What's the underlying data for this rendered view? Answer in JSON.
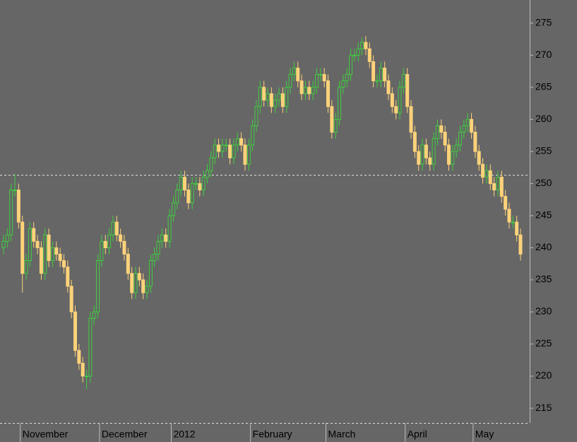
{
  "chart_data": {
    "type": "candlestick",
    "categories": [
      null,
      null,
      null,
      null,
      null,
      "November",
      null,
      null,
      null,
      null,
      null,
      null,
      null,
      null,
      null,
      null,
      null,
      null,
      null,
      null,
      null,
      null,
      null,
      null,
      null,
      null,
      "December",
      null,
      null,
      null,
      null,
      null,
      null,
      null,
      null,
      null,
      null,
      null,
      null,
      null,
      null,
      null,
      null,
      null,
      null,
      "2012",
      null,
      null,
      null,
      null,
      null,
      null,
      null,
      null,
      null,
      null,
      null,
      null,
      null,
      null,
      null,
      null,
      null,
      null,
      null,
      null,
      "February",
      null,
      null,
      null,
      null,
      null,
      null,
      null,
      null,
      null,
      null,
      null,
      null,
      null,
      null,
      null,
      null,
      null,
      null,
      null,
      "March",
      null,
      null,
      null,
      null,
      null,
      null,
      null,
      null,
      null,
      null,
      null,
      null,
      null,
      null,
      null,
      null,
      null,
      null,
      null,
      null,
      "April",
      null,
      null,
      null,
      null,
      null,
      null,
      null,
      null,
      null,
      null,
      null,
      null,
      null,
      null,
      null,
      null,
      null,
      "May",
      null,
      null,
      null,
      null,
      null,
      null,
      null,
      null,
      null,
      null,
      null,
      null
    ],
    "open": [
      240,
      241,
      242,
      249,
      249,
      244,
      236,
      238,
      243,
      241,
      240,
      236,
      242,
      238,
      240,
      239,
      238,
      237,
      234,
      230,
      224,
      222,
      220,
      220,
      229,
      230,
      238,
      241,
      240,
      242,
      244,
      242,
      241,
      239,
      236,
      233,
      236,
      235,
      233,
      234,
      238,
      239,
      241,
      242,
      241,
      245,
      247,
      249,
      251,
      249,
      247,
      250,
      250,
      249,
      251,
      252,
      254,
      256,
      255,
      256,
      256,
      254,
      256,
      257,
      256,
      253,
      256,
      259,
      262,
      265,
      263,
      264,
      262,
      263,
      264,
      262,
      265,
      267,
      268,
      266,
      264,
      265,
      264,
      265,
      267,
      267,
      266,
      262,
      258,
      260,
      265,
      266,
      267,
      270,
      270,
      271,
      272,
      271,
      269,
      266,
      266,
      268,
      266,
      264,
      262,
      261,
      265,
      267,
      262,
      258,
      255,
      253,
      256,
      254,
      253,
      257,
      259,
      258,
      256,
      253,
      255,
      256,
      258,
      259,
      260,
      258,
      255,
      253,
      251,
      252,
      250,
      249,
      251,
      248,
      246,
      244,
      244,
      242
    ],
    "high": [
      242,
      243,
      250,
      251.5,
      250,
      245,
      239,
      244,
      244,
      242,
      241,
      243,
      243,
      241,
      241,
      240,
      239,
      238,
      235,
      231,
      225,
      223,
      221,
      230,
      231,
      239,
      242,
      242,
      243,
      245,
      245,
      243,
      242,
      240,
      237,
      237,
      237,
      236,
      235,
      239,
      240,
      242,
      243,
      243,
      246,
      248,
      250,
      252,
      252,
      250,
      251,
      251,
      251,
      252,
      253,
      255,
      257,
      257,
      257,
      257,
      257,
      257,
      258,
      258,
      257,
      257,
      260,
      263,
      266,
      266,
      265,
      265,
      264,
      265,
      265,
      266,
      268,
      269,
      269,
      267,
      266,
      266,
      266,
      268,
      268,
      268,
      267,
      263,
      261,
      266,
      267,
      268,
      271,
      271,
      272,
      272.8,
      273,
      272,
      270,
      267,
      269,
      269,
      267,
      265,
      263,
      266,
      268,
      268,
      263,
      259,
      256,
      257,
      257,
      255,
      258,
      260,
      260,
      259,
      257,
      256,
      257,
      259,
      260,
      261,
      261,
      259,
      256,
      254,
      253,
      253,
      251,
      252,
      252,
      249,
      247,
      245,
      245,
      243
    ],
    "low": [
      239,
      240,
      241,
      248,
      243,
      233,
      235,
      237,
      240,
      239,
      235,
      235,
      237,
      237,
      238,
      237,
      236,
      233,
      229,
      223,
      221,
      219,
      218,
      219,
      228,
      229,
      237,
      239,
      239,
      241,
      241,
      240,
      238,
      235,
      232,
      232,
      234,
      232,
      232,
      233,
      237,
      238,
      240,
      240,
      240,
      244,
      246,
      248,
      248,
      246,
      246,
      249,
      248,
      248,
      250,
      251,
      253,
      254,
      254,
      255,
      253,
      253,
      255,
      255,
      252,
      252,
      255,
      258,
      261,
      262,
      262,
      261,
      261,
      262,
      261,
      261,
      264,
      266,
      265,
      263,
      263,
      263,
      263,
      264,
      266,
      265,
      261,
      257,
      257,
      259,
      264,
      265,
      266,
      269,
      269,
      270,
      270,
      268,
      265,
      265,
      265,
      265,
      263,
      261,
      260,
      260,
      264,
      261,
      257,
      254,
      252,
      252,
      253,
      252,
      252,
      256,
      257,
      255,
      252,
      252,
      254,
      255,
      257,
      258,
      257,
      254,
      252,
      250,
      250,
      249,
      248,
      248,
      247,
      245,
      243,
      243,
      241,
      238
    ],
    "close": [
      241,
      242,
      249,
      249,
      244,
      236,
      238,
      243,
      241,
      240,
      236,
      242,
      238,
      240,
      239,
      238,
      237,
      234,
      230,
      224,
      222,
      220,
      220,
      229,
      230,
      238,
      241,
      240,
      242,
      244,
      242,
      241,
      239,
      236,
      233,
      236,
      235,
      233,
      234,
      238,
      239,
      241,
      242,
      241,
      245,
      247,
      249,
      251,
      249,
      247,
      250,
      250,
      249,
      251,
      252,
      254,
      256,
      255,
      256,
      256,
      254,
      256,
      257,
      256,
      253,
      256,
      259,
      262,
      265,
      263,
      264,
      262,
      263,
      264,
      262,
      265,
      267,
      268,
      266,
      264,
      265,
      264,
      265,
      267,
      267,
      266,
      262,
      258,
      260,
      265,
      266,
      267,
      270,
      270,
      271,
      272,
      271,
      269,
      266,
      266,
      268,
      266,
      264,
      262,
      261,
      265,
      267,
      262,
      258,
      255,
      253,
      256,
      254,
      253,
      257,
      259,
      258,
      256,
      253,
      255,
      256,
      258,
      259,
      260,
      258,
      255,
      253,
      251,
      252,
      250,
      249,
      251,
      248,
      246,
      244,
      244,
      242,
      239
    ],
    "up_color": "#3fcf3f",
    "down_color": "#ffd27a",
    "ref_line": 251.3,
    "ylim": [
      212.7,
      278.6
    ],
    "yticks": [
      215,
      220,
      225,
      230,
      235,
      240,
      245,
      250,
      255,
      260,
      265,
      270,
      275
    ]
  }
}
